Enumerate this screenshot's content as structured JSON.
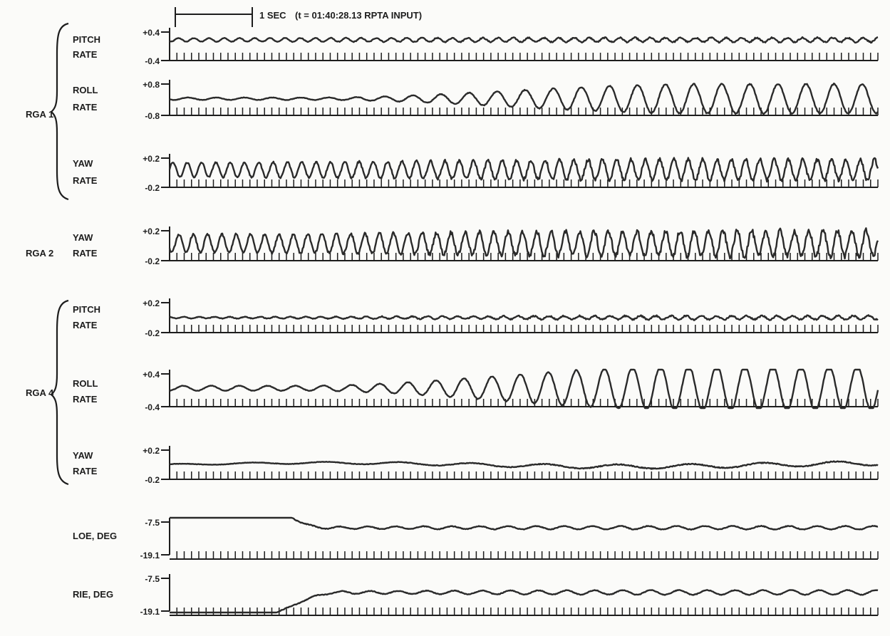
{
  "chart_data": {
    "type": "line",
    "time_marker": {
      "label": "1 SEC",
      "annotation": "(t = 01:40:28.13 RPTA INPUT)",
      "duration_s": 1
    },
    "groups": [
      {
        "name": "RGA 1",
        "channels": [
          "PITCH RATE",
          "ROLL RATE",
          "YAW RATE"
        ]
      },
      {
        "name": "RGA 2",
        "channels": [
          "YAW RATE"
        ]
      },
      {
        "name": "RGA 4",
        "channels": [
          "PITCH RATE",
          "ROLL RATE",
          "YAW RATE"
        ]
      }
    ],
    "x": {
      "unit": "s",
      "range": [
        0,
        9.7
      ],
      "ticks_per_second": 10
    },
    "series": [
      {
        "group": "RGA 1",
        "name_line1": "PITCH",
        "name_line2": "RATE",
        "ticks": [
          "+0.4",
          "-0.4"
        ],
        "ylim": [
          -0.4,
          0.4
        ],
        "color": "#2a2a2a",
        "signal": {
          "offset": 0.18,
          "drift": 0.0,
          "onset_s": 0.0,
          "amp_start": 0.05,
          "amp_end": 0.06,
          "freq_hz": 4.8,
          "noise": 0.02
        }
      },
      {
        "group": "RGA 1",
        "name_line1": "ROLL",
        "name_line2": "RATE",
        "ticks": [
          "+0.8",
          "-0.8"
        ],
        "ylim": [
          -0.8,
          0.8
        ],
        "color": "#2a2a2a",
        "signal": {
          "offset": 0.05,
          "drift": 0.0,
          "onset_s": 2.0,
          "amp_start": 0.06,
          "amp_end": 0.75,
          "freq_hz": 2.6,
          "noise": 0.03
        }
      },
      {
        "group": "RGA 1",
        "name_line1": "YAW",
        "name_line2": "RATE",
        "ticks": [
          "+0.2",
          "-0.2"
        ],
        "ylim": [
          -0.2,
          0.2
        ],
        "color": "#2a2a2a",
        "signal": {
          "offset": 0.04,
          "drift": 0.0,
          "onset_s": 0.0,
          "amp_start": 0.1,
          "amp_end": 0.14,
          "freq_hz": 5.1,
          "noise": 0.025
        }
      },
      {
        "group": "RGA 2",
        "name_line1": "YAW",
        "name_line2": "RATE",
        "ticks": [
          "+0.2",
          "-0.2"
        ],
        "ylim": [
          -0.2,
          0.2
        ],
        "color": "#2a2a2a",
        "signal": {
          "offset": 0.03,
          "drift": 0.0,
          "onset_s": 0.0,
          "amp_start": 0.12,
          "amp_end": 0.17,
          "freq_hz": 5.1,
          "noise": 0.035
        }
      },
      {
        "group": "RGA 4",
        "name_line1": "PITCH",
        "name_line2": "RATE",
        "ticks": [
          "+0.2",
          "-0.2"
        ],
        "ylim": [
          -0.2,
          0.2
        ],
        "color": "#2a2a2a",
        "signal": {
          "offset": 0.0,
          "drift": 0.0,
          "onset_s": 0.0,
          "amp_start": 0.01,
          "amp_end": 0.025,
          "freq_hz": 4.8,
          "noise": 0.01
        }
      },
      {
        "group": "RGA 4",
        "name_line1": "ROLL",
        "name_line2": "RATE",
        "ticks": [
          "+0.4",
          "-0.4"
        ],
        "ylim": [
          -0.4,
          0.4
        ],
        "color": "#2a2a2a",
        "signal": {
          "offset": 0.05,
          "drift": 0.0,
          "onset_s": 1.8,
          "amp_start": 0.06,
          "amp_end": 0.55,
          "freq_hz": 2.6,
          "noise": 0.015
        }
      },
      {
        "group": "RGA 4",
        "name_line1": "YAW",
        "name_line2": "RATE",
        "ticks": [
          "+0.2",
          "-0.2"
        ],
        "ylim": [
          -0.2,
          0.2
        ],
        "color": "#2a2a2a",
        "signal": {
          "offset": 0.0,
          "drift": 0.025,
          "onset_s": 0.0,
          "amp_start": 0.01,
          "amp_end": 0.03,
          "freq_hz": 1.0,
          "noise": 0.006
        }
      },
      {
        "group": "",
        "name_line1": "LOE, DEG",
        "name_line2": "",
        "ticks": [
          "-7.5",
          "-19.1"
        ],
        "ylim": [
          -19.1,
          -7.5
        ],
        "color": "#2a2a2a",
        "signal": {
          "offset": -9.5,
          "drift": 0.0,
          "onset_s": 0.0,
          "amp_start": 0.4,
          "amp_end": 0.6,
          "freq_hz": 2.6,
          "noise": 0.12,
          "step": {
            "from": 0.5,
            "to": -9.5,
            "t0": 1.05,
            "t1": 2.1
          }
        }
      },
      {
        "group": "",
        "name_line1": "RIE, DEG",
        "name_line2": "",
        "ticks": [
          "-7.5",
          "-19.1"
        ],
        "ylim": [
          -19.1,
          -7.5
        ],
        "color": "#2a2a2a",
        "signal": {
          "offset": -12.5,
          "drift": 0.0,
          "onset_s": 0.0,
          "amp_start": 0.4,
          "amp_end": 0.8,
          "freq_hz": 2.6,
          "noise": 0.12,
          "step": {
            "from": -22.0,
            "to": -12.5,
            "t0": 1.05,
            "t1": 2.3
          }
        }
      }
    ]
  }
}
